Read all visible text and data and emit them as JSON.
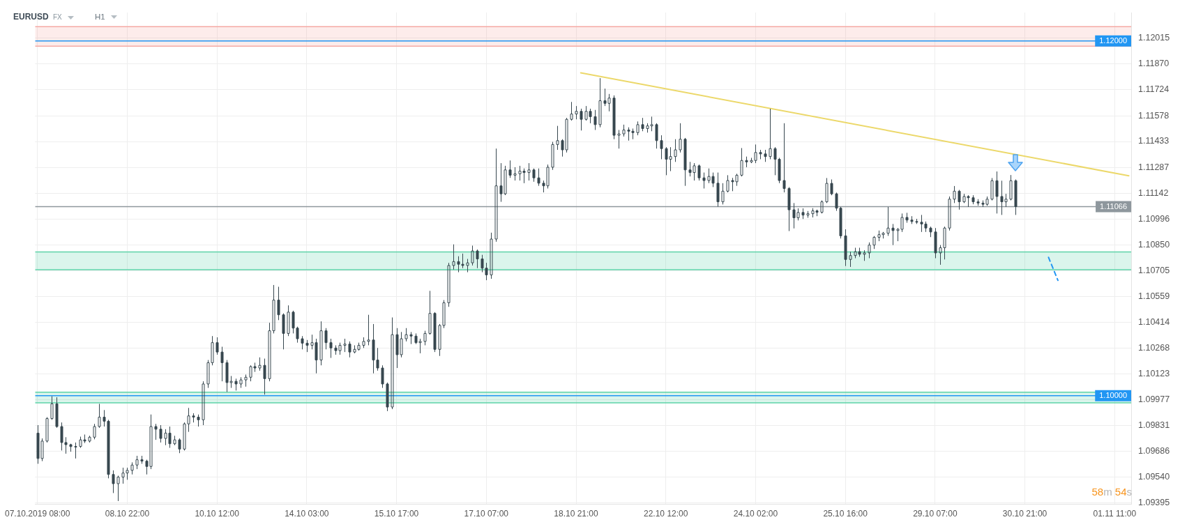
{
  "chart_data": {
    "type": "candlestick",
    "title": "EURUSD",
    "annotations": [
      "FX",
      "H1",
      "58m 54s"
    ],
    "color": "#37474f",
    "categories": [
      "07.10.2019 08:00",
      null,
      null,
      null,
      null,
      null,
      null,
      null,
      null,
      null,
      null,
      null,
      null,
      null,
      null,
      null,
      null,
      null,
      null,
      "08.10 22:00",
      null,
      null,
      null,
      null,
      null,
      null,
      null,
      null,
      null,
      null,
      null,
      null,
      null,
      null,
      null,
      null,
      null,
      null,
      "10.10 12:00",
      null,
      null,
      null,
      null,
      null,
      null,
      null,
      null,
      null,
      null,
      null,
      null,
      null,
      null,
      null,
      null,
      null,
      null,
      "14.10 03:00",
      null,
      null,
      null,
      null,
      null,
      null,
      null,
      null,
      null,
      null,
      null,
      null,
      null,
      null,
      null,
      null,
      null,
      null,
      "15.10 17:00",
      null,
      null,
      null,
      null,
      null,
      null,
      null,
      null,
      null,
      null,
      null,
      null,
      null,
      null,
      null,
      null,
      null,
      null,
      "17.10 07:00",
      null,
      null,
      null,
      null,
      null,
      null,
      null,
      null,
      null,
      null,
      null,
      null,
      null,
      null,
      null,
      null,
      null,
      null,
      "18.10 21:00",
      null,
      null,
      null,
      null,
      null,
      null,
      null,
      null,
      null,
      null,
      null,
      null,
      null,
      null,
      null,
      null,
      null,
      null,
      "22.10 12:00",
      null,
      null,
      null,
      null,
      null,
      null,
      null,
      null,
      null,
      null,
      null,
      null,
      null,
      null,
      null,
      null,
      null,
      null,
      "24.10 02:00",
      null,
      null,
      null,
      null,
      null,
      null,
      null,
      null,
      null,
      null,
      null,
      null,
      null,
      null,
      null,
      null,
      null,
      null,
      "25.10 16:00",
      null,
      null,
      null,
      null,
      null,
      null,
      null,
      null,
      null,
      null,
      null,
      null,
      null,
      null,
      null,
      null,
      null,
      null,
      "29.10 07:00",
      null,
      null,
      null,
      null,
      null,
      null,
      null,
      null,
      null,
      null,
      null,
      null,
      null,
      null,
      null,
      null,
      null,
      null,
      "30.10 21:00",
      null,
      null,
      null,
      null,
      null,
      null,
      null,
      null,
      null,
      null,
      null,
      null,
      null,
      null,
      null,
      null,
      null,
      null,
      "01.11 11:00",
      null,
      null,
      null
    ],
    "ohlc": [
      [
        1.09789,
        1.09834,
        1.09616,
        1.09646
      ],
      [
        1.09646,
        1.09759,
        1.09631,
        1.09744
      ],
      [
        1.09744,
        1.09879,
        1.09736,
        1.09871
      ],
      [
        1.09871,
        1.09997,
        1.09864,
        1.09954
      ],
      [
        1.09954,
        1.09991,
        1.09819,
        1.09826
      ],
      [
        1.09826,
        1.09849,
        1.09691,
        1.09736
      ],
      [
        1.09736,
        1.09766,
        1.09673,
        1.09724
      ],
      [
        1.09724,
        1.09729,
        1.09684,
        1.09713
      ],
      [
        1.09713,
        1.09736,
        1.09646,
        1.09714
      ],
      [
        1.09714,
        1.09769,
        1.09706,
        1.09751
      ],
      [
        1.09751,
        1.09781,
        1.09733,
        1.09744
      ],
      [
        1.09744,
        1.09774,
        1.09736,
        1.09766
      ],
      [
        1.09766,
        1.09841,
        1.09754,
        1.09826
      ],
      [
        1.09826,
        1.09954,
        1.09819,
        1.09879
      ],
      [
        1.09879,
        1.09919,
        1.09826,
        1.09856
      ],
      [
        1.09856,
        1.09864,
        1.09534,
        1.09556
      ],
      [
        1.09556,
        1.09579,
        1.09451,
        1.09504
      ],
      [
        1.09504,
        1.09549,
        1.09406,
        1.09541
      ],
      [
        1.09541,
        1.09594,
        1.09504,
        1.09564
      ],
      [
        1.09564,
        1.09594,
        1.09526,
        1.09579
      ],
      [
        1.09579,
        1.09624,
        1.09556,
        1.09609
      ],
      [
        1.09609,
        1.09661,
        1.09586,
        1.09639
      ],
      [
        1.09639,
        1.09661,
        1.09616,
        1.09631
      ],
      [
        1.09631,
        1.09639,
        1.09556,
        1.09601
      ],
      [
        1.09601,
        1.09894,
        1.09586,
        1.09826
      ],
      [
        1.09826,
        1.09841,
        1.09751,
        1.09811
      ],
      [
        1.09811,
        1.09834,
        1.09736,
        1.09759
      ],
      [
        1.09759,
        1.09811,
        1.09721,
        1.09789
      ],
      [
        1.09789,
        1.09826,
        1.09706,
        1.09729
      ],
      [
        1.09729,
        1.09774,
        1.09721,
        1.09751
      ],
      [
        1.09751,
        1.09759,
        1.09676,
        1.09699
      ],
      [
        1.09699,
        1.09849,
        1.09691,
        1.09841
      ],
      [
        1.09841,
        1.09931,
        1.09796,
        1.09886
      ],
      [
        1.09886,
        1.09901,
        1.09849,
        1.09879
      ],
      [
        1.09879,
        1.09894,
        1.09826,
        1.09864
      ],
      [
        1.09864,
        1.10081,
        1.09834,
        1.10066
      ],
      [
        1.10066,
        1.10201,
        1.10044,
        1.10186
      ],
      [
        1.10186,
        1.10336,
        1.10171,
        1.10299
      ],
      [
        1.10299,
        1.10329,
        1.10231,
        1.10246
      ],
      [
        1.10246,
        1.10276,
        1.10081,
        1.10186
      ],
      [
        1.10186,
        1.10201,
        1.10021,
        1.10074
      ],
      [
        1.10074,
        1.10111,
        1.10044,
        1.10081
      ],
      [
        1.10081,
        1.10096,
        1.10029,
        1.10066
      ],
      [
        1.10066,
        1.10104,
        1.10044,
        1.10089
      ],
      [
        1.10089,
        1.10119,
        1.10051,
        1.10104
      ],
      [
        1.10104,
        1.10171,
        1.10081,
        1.10164
      ],
      [
        1.10164,
        1.10186,
        1.10134,
        1.10156
      ],
      [
        1.10156,
        1.10216,
        1.10141,
        1.10171
      ],
      [
        1.10171,
        1.10209,
        1.10006,
        1.10096
      ],
      [
        1.10096,
        1.10411,
        1.10081,
        1.10366
      ],
      [
        1.10366,
        1.10624,
        1.10351,
        1.10539
      ],
      [
        1.10539,
        1.10614,
        1.10426,
        1.10456
      ],
      [
        1.10456,
        1.10464,
        1.10261,
        1.10351
      ],
      [
        1.10351,
        1.10509,
        1.10336,
        1.10471
      ],
      [
        1.10471,
        1.10479,
        1.10351,
        1.10381
      ],
      [
        1.10381,
        1.10389,
        1.10299,
        1.10321
      ],
      [
        1.10321,
        1.10336,
        1.10261,
        1.10296
      ],
      [
        1.10296,
        1.10314,
        1.10246,
        1.10284
      ],
      [
        1.10284,
        1.10344,
        1.10261,
        1.10299
      ],
      [
        1.10299,
        1.10321,
        1.10126,
        1.10201
      ],
      [
        1.10201,
        1.10419,
        1.10171,
        1.10366
      ],
      [
        1.10366,
        1.10381,
        1.10261,
        1.10299
      ],
      [
        1.10299,
        1.10321,
        1.10213,
        1.10269
      ],
      [
        1.10269,
        1.10284,
        1.10231,
        1.10254
      ],
      [
        1.10254,
        1.10299,
        1.10231,
        1.10284
      ],
      [
        1.10284,
        1.10321,
        1.10246,
        1.10291
      ],
      [
        1.10291,
        1.10306,
        1.10216,
        1.10246
      ],
      [
        1.10246,
        1.10284,
        1.10239,
        1.10261
      ],
      [
        1.10261,
        1.10299,
        1.10254,
        1.10284
      ],
      [
        1.10284,
        1.10329,
        1.10269,
        1.10306
      ],
      [
        1.10306,
        1.10456,
        1.10284,
        1.10314
      ],
      [
        1.10314,
        1.10404,
        1.10126,
        1.10201
      ],
      [
        1.10201,
        1.10269,
        1.10141,
        1.10156
      ],
      [
        1.10156,
        1.10171,
        1.10044,
        1.10066
      ],
      [
        1.10066,
        1.10074,
        1.09913,
        1.09936
      ],
      [
        1.09936,
        1.10441,
        1.09924,
        1.10344
      ],
      [
        1.10344,
        1.10381,
        1.10156,
        1.10231
      ],
      [
        1.10231,
        1.10359,
        1.10216,
        1.10321
      ],
      [
        1.10321,
        1.10381,
        1.10306,
        1.10344
      ],
      [
        1.10344,
        1.10359,
        1.10291,
        1.10336
      ],
      [
        1.10336,
        1.10351,
        1.10291,
        1.10299
      ],
      [
        1.10299,
        1.10321,
        1.10239,
        1.10306
      ],
      [
        1.10306,
        1.10366,
        1.10284,
        1.10351
      ],
      [
        1.10351,
        1.10591,
        1.10344,
        1.10464
      ],
      [
        1.10464,
        1.10471,
        1.10246,
        1.10261
      ],
      [
        1.10261,
        1.10404,
        1.10224,
        1.10396
      ],
      [
        1.10396,
        1.10539,
        1.10381,
        1.10524
      ],
      [
        1.10524,
        1.10749,
        1.10501,
        1.10734
      ],
      [
        1.10734,
        1.10853,
        1.10711,
        1.10756
      ],
      [
        1.10756,
        1.10786,
        1.10696,
        1.10741
      ],
      [
        1.10741,
        1.10801,
        1.10719,
        1.10734
      ],
      [
        1.10734,
        1.10771,
        1.10696,
        1.10749
      ],
      [
        1.10749,
        1.10846,
        1.10734,
        1.10816
      ],
      [
        1.10816,
        1.10824,
        1.10719,
        1.10771
      ],
      [
        1.10771,
        1.10794,
        1.10696,
        1.10719
      ],
      [
        1.10719,
        1.10749,
        1.10651,
        1.10681
      ],
      [
        1.10681,
        1.10919,
        1.10659,
        1.10883
      ],
      [
        1.10883,
        1.11393,
        1.10868,
        1.11183
      ],
      [
        1.11183,
        1.11311,
        1.11093,
        1.11138
      ],
      [
        1.11138,
        1.11296,
        1.11131,
        1.11273
      ],
      [
        1.11273,
        1.11326,
        1.11228,
        1.11243
      ],
      [
        1.11243,
        1.11288,
        1.11213,
        1.11251
      ],
      [
        1.11251,
        1.11296,
        1.11213,
        1.11266
      ],
      [
        1.11266,
        1.11281,
        1.11198,
        1.11258
      ],
      [
        1.11258,
        1.11311,
        1.11213,
        1.11273
      ],
      [
        1.11273,
        1.11281,
        1.11206,
        1.11228
      ],
      [
        1.11228,
        1.11281,
        1.11183,
        1.11198
      ],
      [
        1.11198,
        1.11213,
        1.11146,
        1.11183
      ],
      [
        1.11183,
        1.11303,
        1.11168,
        1.11288
      ],
      [
        1.11288,
        1.11431,
        1.11273,
        1.11416
      ],
      [
        1.11416,
        1.11521,
        1.11386,
        1.11438
      ],
      [
        1.11438,
        1.11446,
        1.11348,
        1.11386
      ],
      [
        1.11386,
        1.11566,
        1.11371,
        1.11558
      ],
      [
        1.11558,
        1.11656,
        1.11551,
        1.11588
      ],
      [
        1.11588,
        1.11633,
        1.11558,
        1.11603
      ],
      [
        1.11603,
        1.11618,
        1.11495,
        1.11558
      ],
      [
        1.11558,
        1.11633,
        1.11551,
        1.11603
      ],
      [
        1.11603,
        1.11618,
        1.11536,
        1.11573
      ],
      [
        1.11573,
        1.11611,
        1.11498,
        1.11528
      ],
      [
        1.11528,
        1.1179,
        1.11513,
        1.11663
      ],
      [
        1.11663,
        1.11731,
        1.11633,
        1.11648
      ],
      [
        1.11648,
        1.11701,
        1.11603,
        1.11678
      ],
      [
        1.11678,
        1.11693,
        1.11446,
        1.11468
      ],
      [
        1.11468,
        1.11498,
        1.11393,
        1.11476
      ],
      [
        1.11476,
        1.11528,
        1.11461,
        1.11498
      ],
      [
        1.11498,
        1.11513,
        1.11438,
        1.11491
      ],
      [
        1.11491,
        1.11506,
        1.11446,
        1.11483
      ],
      [
        1.11483,
        1.11546,
        1.11468,
        1.11528
      ],
      [
        1.11528,
        1.11566,
        1.11491,
        1.11506
      ],
      [
        1.11506,
        1.11536,
        1.11483,
        1.11521
      ],
      [
        1.11521,
        1.11573,
        1.11491,
        1.11528
      ],
      [
        1.11528,
        1.11536,
        1.11393,
        1.11438
      ],
      [
        1.11438,
        1.11468,
        1.11333,
        1.11393
      ],
      [
        1.11393,
        1.11401,
        1.11243,
        1.11333
      ],
      [
        1.11333,
        1.11401,
        1.11266,
        1.11348
      ],
      [
        1.11348,
        1.11446,
        1.11318,
        1.11386
      ],
      [
        1.11386,
        1.11536,
        1.11371,
        1.11446
      ],
      [
        1.11446,
        1.11453,
        1.11183,
        1.11273
      ],
      [
        1.11273,
        1.11318,
        1.11236,
        1.11258
      ],
      [
        1.11258,
        1.11311,
        1.11213,
        1.11296
      ],
      [
        1.11296,
        1.11303,
        1.11213,
        1.11228
      ],
      [
        1.11228,
        1.11258,
        1.11168,
        1.11213
      ],
      [
        1.11213,
        1.11281,
        1.11198,
        1.11236
      ],
      [
        1.11236,
        1.11258,
        1.11176,
        1.11198
      ],
      [
        1.11198,
        1.11258,
        1.11066,
        1.11093
      ],
      [
        1.11093,
        1.11198,
        1.11078,
        1.11153
      ],
      [
        1.11153,
        1.11243,
        1.11146,
        1.11213
      ],
      [
        1.11213,
        1.11228,
        1.11153,
        1.11206
      ],
      [
        1.11206,
        1.11251,
        1.11183,
        1.11243
      ],
      [
        1.11243,
        1.11396,
        1.11236,
        1.11326
      ],
      [
        1.11326,
        1.11348,
        1.11288,
        1.11318
      ],
      [
        1.11318,
        1.11341,
        1.11311,
        1.11326
      ],
      [
        1.11326,
        1.11416,
        1.11311,
        1.11371
      ],
      [
        1.11371,
        1.11386,
        1.11333,
        1.11363
      ],
      [
        1.11363,
        1.11386,
        1.11318,
        1.11348
      ],
      [
        1.11348,
        1.11618,
        1.11333,
        1.11393
      ],
      [
        1.11393,
        1.11401,
        1.11243,
        1.11333
      ],
      [
        1.11333,
        1.11341,
        1.11198,
        1.11213
      ],
      [
        1.11213,
        1.11536,
        1.11146,
        1.11168
      ],
      [
        1.11168,
        1.11176,
        1.10928,
        1.11048
      ],
      [
        1.11048,
        1.11086,
        1.10943,
        1.11003
      ],
      [
        1.11003,
        1.11056,
        1.10988,
        1.11033
      ],
      [
        1.11033,
        1.11056,
        1.10996,
        1.11018
      ],
      [
        1.11018,
        1.11041,
        1.11003,
        1.11026
      ],
      [
        1.11026,
        1.11057,
        1.11005,
        1.11042
      ],
      [
        1.11042,
        1.11049,
        1.11012,
        1.11034
      ],
      [
        1.11034,
        1.11101,
        1.11027,
        1.11093
      ],
      [
        1.11093,
        1.11227,
        1.11086,
        1.11197
      ],
      [
        1.11197,
        1.11219,
        1.1113,
        1.11138
      ],
      [
        1.11138,
        1.11145,
        1.11042,
        1.11057
      ],
      [
        1.11057,
        1.11064,
        1.10886,
        1.10901
      ],
      [
        1.10901,
        1.10938,
        1.10731,
        1.10768
      ],
      [
        1.10768,
        1.10812,
        1.10726,
        1.1079
      ],
      [
        1.1079,
        1.10834,
        1.10775,
        1.10812
      ],
      [
        1.10812,
        1.10834,
        1.10783,
        1.10797
      ],
      [
        1.10797,
        1.1082,
        1.1076,
        1.10805
      ],
      [
        1.10805,
        1.10864,
        1.10775,
        1.10849
      ],
      [
        1.10849,
        1.109,
        1.10827,
        1.10893
      ],
      [
        1.10893,
        1.10931,
        1.10871,
        1.10908
      ],
      [
        1.10908,
        1.10923,
        1.10886,
        1.10916
      ],
      [
        1.10916,
        1.11064,
        1.10901,
        1.10945
      ],
      [
        1.10945,
        1.10968,
        1.10849,
        1.10931
      ],
      [
        1.10931,
        1.10945,
        1.10871,
        1.10938
      ],
      [
        1.10938,
        1.11027,
        1.10923,
        1.11005
      ],
      [
        1.11005,
        1.11031,
        1.10975,
        1.1099
      ],
      [
        1.1099,
        1.11012,
        1.10968,
        1.10982
      ],
      [
        1.10982,
        1.10997,
        1.10968,
        1.10978
      ],
      [
        1.10978,
        1.11019,
        1.10923,
        1.10968
      ],
      [
        1.10968,
        1.10982,
        1.10923,
        1.10945
      ],
      [
        1.10945,
        1.10953,
        1.10894,
        1.10923
      ],
      [
        1.10923,
        1.10945,
        1.10775,
        1.10805
      ],
      [
        1.10805,
        1.10849,
        1.10738,
        1.10834
      ],
      [
        1.10834,
        1.10953,
        1.10768,
        1.10945
      ],
      [
        1.10945,
        1.11123,
        1.10931,
        1.11108
      ],
      [
        1.11108,
        1.11182,
        1.11086,
        1.11153
      ],
      [
        1.11153,
        1.1116,
        1.11049,
        1.11093
      ],
      [
        1.11093,
        1.11138,
        1.11086,
        1.11123
      ],
      [
        1.11123,
        1.1113,
        1.11064,
        1.11116
      ],
      [
        1.11116,
        1.1113,
        1.11079,
        1.11093
      ],
      [
        1.11093,
        1.11108,
        1.11071,
        1.11086
      ],
      [
        1.11086,
        1.11101,
        1.11064,
        1.11079
      ],
      [
        1.11079,
        1.11123,
        1.11071,
        1.11108
      ],
      [
        1.11108,
        1.11227,
        1.11101,
        1.11212
      ],
      [
        1.11212,
        1.11264,
        1.11027,
        1.11123
      ],
      [
        1.11123,
        1.11212,
        1.11019,
        1.11093
      ],
      [
        1.11093,
        1.11138,
        1.11064,
        1.11108
      ],
      [
        1.11108,
        1.11244,
        1.11101,
        1.11212
      ],
      [
        1.11212,
        1.11219,
        1.11019,
        1.11066
      ],
      null,
      null,
      null,
      null,
      null,
      null,
      null,
      null,
      null,
      null,
      null,
      null,
      null,
      null,
      null,
      null,
      null,
      null,
      null,
      null,
      null,
      null,
      null,
      null
    ],
    "series": [
      {
        "type": "line",
        "color": "#ecd86a",
        "values": [
          null,
          null,
          null,
          null,
          null,
          null,
          null,
          null,
          null,
          null,
          null,
          null,
          null,
          null,
          null,
          null,
          null,
          null,
          null,
          null,
          null,
          null,
          null,
          null,
          null,
          null,
          null,
          null,
          null,
          null,
          null,
          null,
          null,
          null,
          null,
          null,
          null,
          null,
          null,
          null,
          null,
          null,
          null,
          null,
          null,
          null,
          null,
          null,
          null,
          null,
          null,
          null,
          null,
          null,
          null,
          null,
          null,
          null,
          null,
          null,
          null,
          null,
          null,
          null,
          null,
          null,
          null,
          null,
          null,
          null,
          null,
          null,
          null,
          null,
          null,
          null,
          null,
          null,
          null,
          null,
          null,
          null,
          null,
          null,
          null,
          null,
          null,
          null,
          null,
          null,
          null,
          null,
          null,
          null,
          null,
          null,
          null,
          null,
          null,
          null,
          null,
          null,
          null,
          null,
          null,
          null,
          null,
          null,
          null,
          null,
          null,
          null,
          null,
          null,
          null,
          1.1182,
          null,
          null,
          null,
          null,
          null,
          null,
          null,
          null,
          null,
          null,
          null,
          null,
          null,
          null,
          null,
          null,
          null,
          null,
          null,
          null,
          null,
          null,
          null,
          null,
          null,
          null,
          null,
          null,
          null,
          null,
          null,
          null,
          null,
          null,
          null,
          null,
          null,
          null,
          null,
          null,
          null,
          null,
          null,
          null,
          null,
          null,
          null,
          null,
          null,
          null,
          null,
          null,
          null,
          null,
          null,
          null,
          null,
          null,
          null,
          null,
          null,
          null,
          null,
          null,
          null,
          null,
          null,
          null,
          null,
          null,
          null,
          null,
          null,
          null,
          null,
          null,
          null,
          null,
          null,
          null,
          null,
          null,
          null,
          null,
          null,
          null,
          null,
          null,
          null,
          null,
          null,
          null,
          null,
          null,
          null,
          null,
          null,
          null,
          null,
          null,
          null,
          null,
          null,
          null,
          null,
          null,
          null,
          null,
          null,
          null,
          null,
          null,
          null,
          null,
          null,
          1.1124
        ]
      },
      {
        "type": "line",
        "color": "#2196f3",
        "line_style": "dashed",
        "values": [
          null,
          null,
          null,
          null,
          null,
          null,
          null,
          null,
          null,
          null,
          null,
          null,
          null,
          null,
          null,
          null,
          null,
          null,
          null,
          null,
          null,
          null,
          null,
          null,
          null,
          null,
          null,
          null,
          null,
          null,
          null,
          null,
          null,
          null,
          null,
          null,
          null,
          null,
          null,
          null,
          null,
          null,
          null,
          null,
          null,
          null,
          null,
          null,
          null,
          null,
          null,
          null,
          null,
          null,
          null,
          null,
          null,
          null,
          null,
          null,
          null,
          null,
          null,
          null,
          null,
          null,
          null,
          null,
          null,
          null,
          null,
          null,
          null,
          null,
          null,
          null,
          null,
          null,
          null,
          null,
          null,
          null,
          null,
          null,
          null,
          null,
          null,
          null,
          null,
          null,
          null,
          null,
          null,
          null,
          null,
          null,
          null,
          null,
          null,
          null,
          null,
          null,
          null,
          null,
          null,
          null,
          null,
          null,
          null,
          null,
          null,
          null,
          null,
          null,
          null,
          null,
          null,
          null,
          null,
          null,
          null,
          null,
          null,
          null,
          null,
          null,
          null,
          null,
          null,
          null,
          null,
          null,
          null,
          null,
          null,
          null,
          null,
          null,
          null,
          null,
          null,
          null,
          null,
          null,
          null,
          null,
          null,
          null,
          null,
          null,
          null,
          null,
          null,
          null,
          null,
          null,
          null,
          null,
          null,
          null,
          null,
          null,
          null,
          null,
          null,
          null,
          null,
          null,
          null,
          null,
          null,
          null,
          null,
          null,
          null,
          null,
          null,
          null,
          null,
          null,
          null,
          null,
          null,
          null,
          null,
          null,
          null,
          null,
          null,
          null,
          null,
          null,
          null,
          null,
          null,
          null,
          null,
          null,
          null,
          null,
          null,
          null,
          null,
          null,
          null,
          null,
          null,
          null,
          null,
          null,
          null,
          null,
          null,
          null,
          1.1078,
          null,
          1.1065,
          null,
          null,
          null,
          null,
          null,
          null,
          null,
          null,
          null,
          null,
          null,
          null,
          null,
          null,
          null
        ]
      }
    ],
    "ylim": [
      1.0939,
      1.1216
    ],
    "yticks": [
      1.12015,
      {
        "value": 1.1187,
        "label": "1.11870"
      },
      1.11724,
      1.11578,
      1.11433,
      1.11287,
      1.11142,
      1.10996,
      {
        "value": 1.1085,
        "label": "1.10850"
      },
      1.10705,
      1.10559,
      1.10414,
      1.10268,
      1.10123,
      1.09977,
      1.09831,
      1.09686,
      {
        "value": 1.0954,
        "label": "1.09540"
      },
      1.09395
    ],
    "grid": true,
    "bands": [
      {
        "axis": "y",
        "from": 1.1197,
        "to": 1.1208,
        "color": "#f5a9a4"
      },
      {
        "axis": "y",
        "from": 1.1071,
        "to": 1.1081,
        "color": "#5dd3a8"
      },
      {
        "axis": "y",
        "from": 1.0996,
        "to": 1.1002,
        "color": "#5dd3a8"
      }
    ],
    "ref_lines": [
      {
        "axis": "y",
        "value": 1.1208,
        "color": "#f5a9a4"
      },
      {
        "axis": "y",
        "value": 1.1197,
        "color": "#f5a9a4"
      },
      {
        "axis": "y",
        "value": 1.1081,
        "color": "#5dd3a8"
      },
      {
        "axis": "y",
        "value": 1.1071,
        "color": "#5dd3a8"
      },
      {
        "axis": "y",
        "value": 1.1002,
        "color": "#5dd3a8"
      },
      {
        "axis": "y",
        "value": 1.0996,
        "color": "#5dd3a8"
      },
      {
        "axis": "y",
        "value": 1.12,
        "label": "1.12000",
        "color": "#2196f3"
      },
      {
        "axis": "y",
        "value": 1.1,
        "label": "1.10000",
        "color": "#2196f3"
      },
      {
        "axis": "y",
        "value": 1.11066,
        "label": "1.11066",
        "color": "#8e979d"
      }
    ]
  }
}
